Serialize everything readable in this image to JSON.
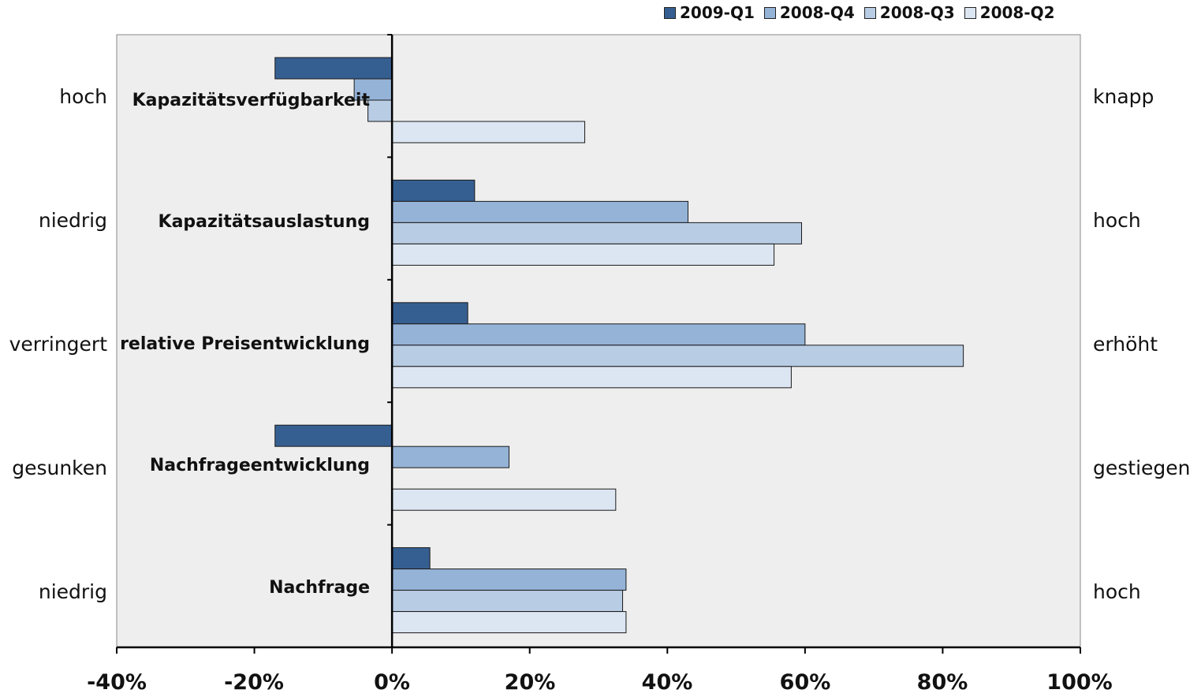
{
  "chart_data": {
    "type": "bar",
    "orientation": "horizontal",
    "categories": [
      "Kapazitätsverfügbarkeit",
      "Kapazitätsauslastung",
      "relative Preisentwicklung",
      "Nachfrageentwicklung",
      "Nachfrage"
    ],
    "left_labels": [
      "hoch",
      "niedrig",
      "verringert",
      "gesunken",
      "niedrig"
    ],
    "right_labels": [
      "knapp",
      "hoch",
      "erhöht",
      "gestiegen",
      "hoch"
    ],
    "series": [
      {
        "name": "2009-Q1",
        "color": "#365f91",
        "values": [
          -17,
          12,
          11,
          -17,
          5.5
        ]
      },
      {
        "name": "2008-Q4",
        "color": "#95b3d7",
        "values": [
          -5.5,
          43,
          60,
          17,
          34
        ]
      },
      {
        "name": "2008-Q3",
        "color": "#b8cce4",
        "values": [
          -3.5,
          59.5,
          83,
          0,
          33.5
        ]
      },
      {
        "name": "2008-Q2",
        "color": "#dce6f2",
        "values": [
          28,
          55.5,
          58,
          32.5,
          34
        ]
      }
    ],
    "xlim": [
      -40,
      100
    ],
    "xticks": [
      "-40%",
      "-20%",
      "0%",
      "20%",
      "40%",
      "60%",
      "80%",
      "100%"
    ],
    "xtick_values": [
      -40,
      -20,
      0,
      20,
      40,
      60,
      80,
      100
    ],
    "legend_position": "top-right",
    "plot_background": "#eeeeee"
  }
}
